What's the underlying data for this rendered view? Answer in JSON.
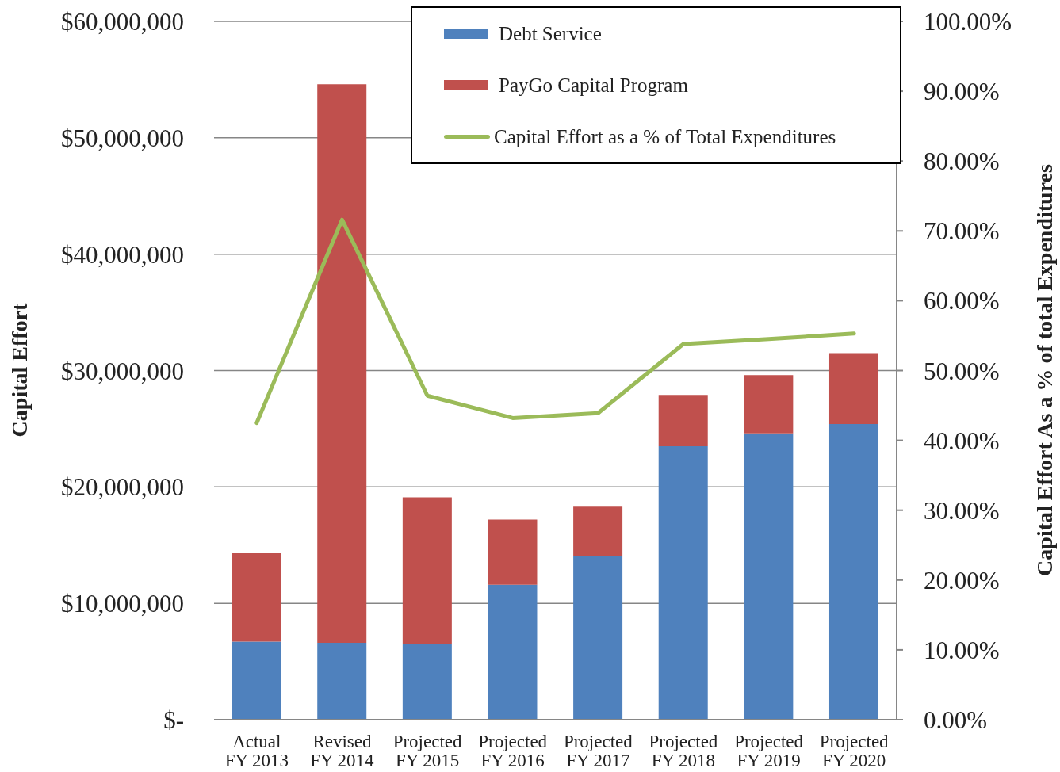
{
  "chart_data": {
    "type": "bar",
    "stacked": true,
    "categories": [
      "Actual\nFY 2013",
      "Revised\nFY 2014",
      "Projected\nFY 2015",
      "Projected\nFY 2016",
      "Projected\nFY 2017",
      "Projected\nFY 2018",
      "Projected\nFY 2019",
      "Projected\nFY 2020"
    ],
    "series": [
      {
        "name": "Debt Service",
        "color": "#4f81bd",
        "values": [
          6700000,
          6600000,
          6500000,
          11600000,
          14100000,
          23500000,
          24600000,
          25400000
        ]
      },
      {
        "name": "PayGo Capital Program",
        "color": "#c0504d",
        "values": [
          7600000,
          48000000,
          12600000,
          5600000,
          4200000,
          4400000,
          5000000,
          6100000
        ]
      },
      {
        "name": "Capital Effort as a % of Total Expenditures",
        "type": "line",
        "axis": "y2",
        "color": "#9bbb59",
        "values": [
          42.5,
          71.6,
          46.4,
          43.2,
          43.9,
          53.8,
          54.5,
          55.3
        ]
      }
    ],
    "ylabel": "Capital Effort",
    "y2label": "Capital Effort As a % of total Expenditures",
    "ylim": [
      0,
      60000000
    ],
    "yticks": [
      {
        "value": 0,
        "label": "$-"
      },
      {
        "value": 10000000,
        "label": "$10,000,000"
      },
      {
        "value": 20000000,
        "label": "$20,000,000"
      },
      {
        "value": 30000000,
        "label": "$30,000,000"
      },
      {
        "value": 40000000,
        "label": "$40,000,000"
      },
      {
        "value": 50000000,
        "label": "$50,000,000"
      },
      {
        "value": 60000000,
        "label": "$60,000,000"
      }
    ],
    "y2lim": [
      0,
      100
    ],
    "y2ticks": [
      {
        "value": 0,
        "label": "0.00%"
      },
      {
        "value": 10,
        "label": "10.00%"
      },
      {
        "value": 20,
        "label": "20.00%"
      },
      {
        "value": 30,
        "label": "30.00%"
      },
      {
        "value": 40,
        "label": "40.00%"
      },
      {
        "value": 50,
        "label": "50.00%"
      },
      {
        "value": 60,
        "label": "60.00%"
      },
      {
        "value": 70,
        "label": "70.00%"
      },
      {
        "value": 80,
        "label": "80.00%"
      },
      {
        "value": 90,
        "label": "90.00%"
      },
      {
        "value": 100,
        "label": "100.00%"
      }
    ],
    "grid": "y",
    "legend": "top right"
  }
}
